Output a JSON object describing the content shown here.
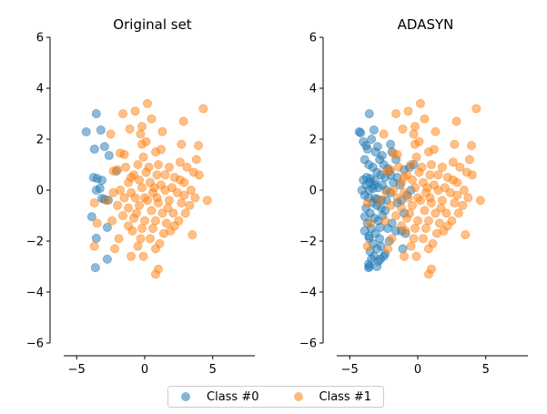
{
  "chart_data": [
    {
      "type": "scatter",
      "title": "Original set",
      "xlim": [
        -6,
        8
      ],
      "ylim": [
        -6,
        6
      ],
      "xticks": [
        -5,
        0,
        5
      ],
      "yticks": [
        -6,
        -4,
        -2,
        0,
        2,
        4,
        6
      ],
      "grid": false,
      "legend": "bottom-center",
      "series": [
        {
          "name": "Class #0",
          "color": "#1f77b4",
          "points": [
            [
              -3.56,
              3.0
            ],
            [
              -4.3,
              2.29
            ],
            [
              -3.22,
              2.36
            ],
            [
              -3.69,
              1.61
            ],
            [
              -2.95,
              1.71
            ],
            [
              -2.62,
              1.36
            ],
            [
              -2.08,
              0.75
            ],
            [
              -3.76,
              0.5
            ],
            [
              -3.49,
              0.46
            ],
            [
              -3.15,
              0.39
            ],
            [
              -3.29,
              0.07
            ],
            [
              -3.56,
              0.0
            ],
            [
              -3.15,
              -0.32
            ],
            [
              -2.95,
              -0.36
            ],
            [
              -2.68,
              -0.39
            ],
            [
              -3.89,
              -1.04
            ],
            [
              -2.75,
              -1.46
            ],
            [
              -3.56,
              -1.89
            ],
            [
              -2.75,
              -2.71
            ],
            [
              -3.62,
              -3.04
            ]
          ]
        },
        {
          "name": "Class #1",
          "color": "#ff7f0e",
          "points": "shared_orange"
        }
      ]
    },
    {
      "type": "scatter",
      "title": "ADASYN",
      "xlim": [
        -6,
        8
      ],
      "ylim": [
        -6,
        6
      ],
      "xticks": [
        -5,
        0,
        5
      ],
      "yticks": [
        -6,
        -4,
        -2,
        0,
        2,
        4,
        6
      ],
      "grid": false,
      "series": [
        {
          "name": "Class #0",
          "color": "#1f77b4",
          "points": "original_plus_synthetic",
          "synthetic": [
            [
              -4.2,
              2.25
            ],
            [
              -4.0,
              1.9
            ],
            [
              -3.8,
              1.75
            ],
            [
              -3.4,
              2.0
            ],
            [
              -3.1,
              1.5
            ],
            [
              -2.8,
              1.2
            ],
            [
              -2.5,
              1.0
            ],
            [
              -2.2,
              0.85
            ],
            [
              -3.9,
              1.2
            ],
            [
              -3.6,
              1.0
            ],
            [
              -3.3,
              0.9
            ],
            [
              -3.0,
              0.7
            ],
            [
              -2.7,
              0.6
            ],
            [
              -2.4,
              0.5
            ],
            [
              -4.0,
              0.4
            ],
            [
              -3.8,
              0.2
            ],
            [
              -3.5,
              0.3
            ],
            [
              -3.2,
              0.2
            ],
            [
              -2.9,
              0.1
            ],
            [
              -2.6,
              0.2
            ],
            [
              -2.3,
              0.0
            ],
            [
              -2.0,
              -0.1
            ],
            [
              -3.9,
              -0.2
            ],
            [
              -3.6,
              -0.3
            ],
            [
              -3.3,
              -0.5
            ],
            [
              -3.0,
              -0.6
            ],
            [
              -2.7,
              -0.7
            ],
            [
              -2.4,
              -0.8
            ],
            [
              -3.8,
              -0.7
            ],
            [
              -3.5,
              -0.9
            ],
            [
              -3.2,
              -1.1
            ],
            [
              -2.9,
              -1.2
            ],
            [
              -2.6,
              -1.0
            ],
            [
              -3.7,
              -1.3
            ],
            [
              -3.4,
              -1.5
            ],
            [
              -3.1,
              -1.7
            ],
            [
              -2.8,
              -1.9
            ],
            [
              -3.6,
              -1.8
            ],
            [
              -3.3,
              -2.1
            ],
            [
              -3.0,
              -2.3
            ],
            [
              -2.7,
              -2.2
            ],
            [
              -3.5,
              -2.4
            ],
            [
              -3.2,
              -2.6
            ],
            [
              -2.9,
              -2.8
            ],
            [
              -3.6,
              -2.9
            ],
            [
              -3.4,
              -2.7
            ],
            [
              -3.55,
              -3.0
            ],
            [
              -2.2,
              -1.5
            ],
            [
              -1.9,
              -1.3
            ],
            [
              -1.6,
              -1.6
            ],
            [
              -1.2,
              -1.6
            ],
            [
              -0.9,
              -1.7
            ],
            [
              -1.5,
              -0.5
            ],
            [
              -1.2,
              -0.4
            ],
            [
              -0.8,
              -0.2
            ],
            [
              -0.5,
              0.0
            ],
            [
              -1.8,
              0.3
            ],
            [
              -1.5,
              0.5
            ],
            [
              -1.0,
              0.8
            ],
            [
              -0.6,
              0.9
            ],
            [
              -0.3,
              1.0
            ],
            [
              -1.9,
              1.5
            ],
            [
              -1.6,
              1.2
            ],
            [
              -2.0,
              1.8
            ],
            [
              -2.4,
              -2.5
            ],
            [
              -2.1,
              -2.0
            ],
            [
              -1.1,
              -2.3
            ],
            [
              -3.9,
              -1.6
            ],
            [
              -4.1,
              0.0
            ],
            [
              -3.0,
              -3.0
            ],
            [
              -2.5,
              -2.6
            ],
            [
              -1.3,
              0.2
            ],
            [
              -1.0,
              -0.9
            ],
            [
              -2.3,
              -0.4
            ],
            [
              -2.0,
              0.6
            ]
          ]
        },
        {
          "name": "Class #1",
          "color": "#ff7f0e",
          "points": "shared_orange"
        }
      ]
    }
  ],
  "shared_orange": [
    [
      4.3,
      3.2
    ],
    [
      0.2,
      3.4
    ],
    [
      -0.7,
      3.1
    ],
    [
      -1.6,
      3.0
    ],
    [
      2.85,
      2.7
    ],
    [
      0.5,
      2.8
    ],
    [
      -1.1,
      2.4
    ],
    [
      -0.2,
      2.5
    ],
    [
      -0.3,
      2.2
    ],
    [
      -0.2,
      1.8
    ],
    [
      1.3,
      2.3
    ],
    [
      2.7,
      1.8
    ],
    [
      -2.5,
      2.2
    ],
    [
      3.95,
      1.75
    ],
    [
      0.8,
      1.5
    ],
    [
      -0.1,
      1.3
    ],
    [
      2.6,
      1.1
    ],
    [
      3.8,
      1.2
    ],
    [
      -1.5,
      1.4
    ],
    [
      -1.8,
      1.45
    ],
    [
      -0.5,
      1.0
    ],
    [
      1.0,
      1.0
    ],
    [
      1.8,
      0.9
    ],
    [
      -2.0,
      0.8
    ],
    [
      -2.3,
      0.75
    ],
    [
      -0.8,
      0.6
    ],
    [
      0.1,
      0.7
    ],
    [
      0.9,
      0.6
    ],
    [
      2.2,
      0.5
    ],
    [
      3.6,
      0.7
    ],
    [
      4.0,
      0.6
    ],
    [
      -1.2,
      0.3
    ],
    [
      -0.4,
      0.4
    ],
    [
      0.4,
      0.3
    ],
    [
      1.2,
      0.2
    ],
    [
      2.0,
      0.1
    ],
    [
      2.9,
      0.3
    ],
    [
      3.4,
      0.0
    ],
    [
      -1.8,
      0.0
    ],
    [
      -1.0,
      -0.1
    ],
    [
      -0.2,
      0.1
    ],
    [
      0.6,
      -0.1
    ],
    [
      1.5,
      0.0
    ],
    [
      2.4,
      -0.1
    ],
    [
      4.6,
      -0.4
    ],
    [
      3.7,
      -0.3
    ],
    [
      -2.3,
      -0.1
    ],
    [
      -1.5,
      -0.3
    ],
    [
      -0.7,
      -0.3
    ],
    [
      0.2,
      -0.4
    ],
    [
      1.0,
      -0.5
    ],
    [
      1.8,
      -0.4
    ],
    [
      2.7,
      -0.5
    ],
    [
      -3.7,
      -0.5
    ],
    [
      -2.0,
      -0.6
    ],
    [
      -1.2,
      -0.7
    ],
    [
      -0.4,
      -0.6
    ],
    [
      0.5,
      -0.8
    ],
    [
      1.3,
      -0.9
    ],
    [
      2.1,
      -0.9
    ],
    [
      3.0,
      -0.9
    ],
    [
      -2.8,
      -0.4
    ],
    [
      -1.6,
      -1.0
    ],
    [
      -0.8,
      -1.1
    ],
    [
      0.0,
      -1.2
    ],
    [
      0.8,
      -1.2
    ],
    [
      1.6,
      -1.3
    ],
    [
      2.5,
      -1.2
    ],
    [
      -2.4,
      -1.2
    ],
    [
      -3.5,
      -1.3
    ],
    [
      -1.2,
      -1.4
    ],
    [
      -0.2,
      -1.5
    ],
    [
      0.6,
      -1.5
    ],
    [
      1.4,
      -1.7
    ],
    [
      3.5,
      -1.75
    ],
    [
      -1.9,
      -1.9
    ],
    [
      0.4,
      -1.9
    ],
    [
      1.1,
      -2.1
    ],
    [
      -0.5,
      -2.2
    ],
    [
      0.8,
      -2.3
    ],
    [
      -2.2,
      -2.3
    ],
    [
      -3.7,
      -2.2
    ],
    [
      -1.0,
      -2.6
    ],
    [
      -0.1,
      -2.6
    ],
    [
      1.0,
      -3.1
    ],
    [
      0.8,
      -3.3
    ],
    [
      -0.9,
      -1.6
    ],
    [
      1.9,
      -1.6
    ],
    [
      0.3,
      0.9
    ],
    [
      1.5,
      0.6
    ],
    [
      2.6,
      0.4
    ],
    [
      -0.6,
      -0.9
    ],
    [
      0.9,
      -0.3
    ],
    [
      1.7,
      -0.7
    ],
    [
      2.9,
      -0.2
    ],
    [
      -1.4,
      0.9
    ],
    [
      0.0,
      -0.3
    ],
    [
      0.7,
      0.1
    ],
    [
      -1.0,
      0.5
    ],
    [
      3.1,
      0.9
    ],
    [
      2.2,
      -1.4
    ],
    [
      -0.3,
      -1.9
    ],
    [
      1.2,
      1.6
    ],
    [
      3.3,
      -0.6
    ],
    [
      0.1,
      1.9
    ]
  ],
  "legend": {
    "labels": [
      "Class #0",
      "Class #1"
    ]
  }
}
